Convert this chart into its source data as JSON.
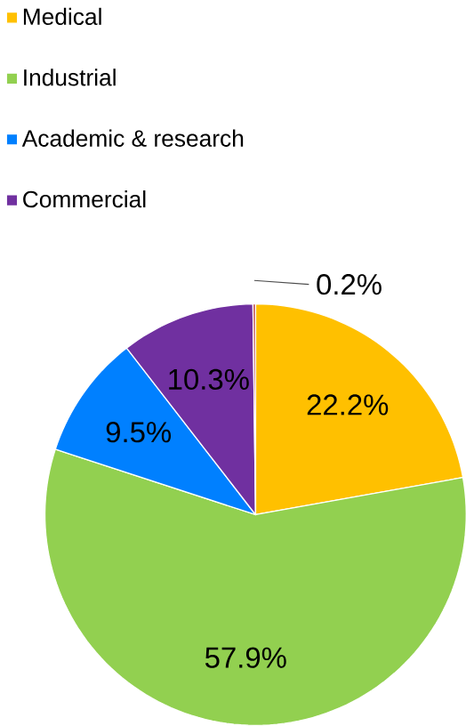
{
  "chart_data": {
    "type": "pie",
    "categories": [
      "Medical",
      "Industrial",
      "Academic & research",
      "Commercial",
      null
    ],
    "values": [
      22.2,
      57.9,
      9.5,
      10.3,
      0.2
    ],
    "colors": [
      "#ffc000",
      "#92d050",
      "#0080ff",
      "#7030a0",
      "#c0504d"
    ],
    "value_labels": [
      "22.2%",
      "57.9%",
      "9.5%",
      "10.3%",
      "0.2%"
    ],
    "legend": "top left"
  }
}
